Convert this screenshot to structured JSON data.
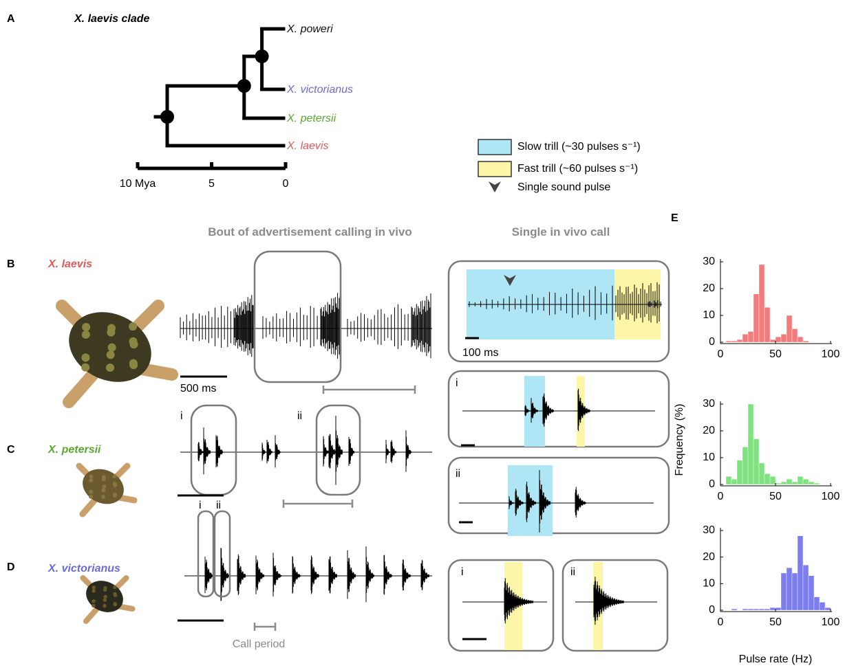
{
  "panels": {
    "a": "A",
    "b": "B",
    "c": "C",
    "d": "D",
    "e": "E"
  },
  "tree": {
    "title": "X. laevis clade",
    "xlim": [
      10,
      0
    ],
    "xticks": [
      {
        "value": 10,
        "label": "10 Mya"
      },
      5,
      0
    ],
    "node_ages": [
      8.0,
      2.8,
      1.6
    ],
    "tips": [
      {
        "label": "X. poweri",
        "color": "#111111"
      },
      {
        "label": "X. victorianus",
        "color": "#6b6bd6"
      },
      {
        "label": "X. petersii",
        "color": "#5aa832"
      },
      {
        "label": "X. laevis",
        "color": "#e05a5a"
      }
    ]
  },
  "legend": {
    "items": [
      {
        "label": "Slow trill (~30 pulses s⁻¹)",
        "color": "#aee6f5"
      },
      {
        "label": "Fast trill (~60 pulses s⁻¹)",
        "color": "#fcf6a6"
      },
      {
        "label": "Single sound pulse",
        "color": "#444444"
      }
    ]
  },
  "headers": {
    "bout": "Bout of advertisement calling in vivo",
    "single": "Single in vivo call"
  },
  "species": [
    {
      "name": "X. laevis",
      "color": "#e05a5a"
    },
    {
      "name": "X. petersii",
      "color": "#5aa832"
    },
    {
      "name": "X. victorianus",
      "color": "#6b6bd6"
    }
  ],
  "scale_bars": {
    "bout": "500 ms",
    "single": "100 ms"
  },
  "sublabels": [
    "i",
    "ii"
  ],
  "call_period": "Call period",
  "histograms": {
    "type": "histogram",
    "bins": [
      0,
      5,
      10,
      15,
      20,
      25,
      30,
      35,
      40,
      45,
      50,
      55,
      60,
      65,
      70,
      75,
      80,
      85,
      90,
      95,
      100
    ],
    "xlim": [
      0,
      100
    ],
    "xticks": [
      0,
      50,
      100
    ],
    "ylim": [
      0,
      30
    ],
    "yticks": [
      0,
      10,
      20,
      30
    ],
    "ylabel": "Frequency (%)",
    "xlabel": "Pulse rate (Hz)",
    "series": [
      {
        "color": "#f47b7b",
        "values": [
          0,
          0.5,
          0.5,
          1,
          3,
          4,
          18,
          29,
          13,
          1,
          2,
          3,
          10,
          5,
          2,
          0.5,
          0,
          0,
          0,
          0
        ]
      },
      {
        "color": "#7ee37e",
        "values": [
          0,
          3,
          2,
          9,
          14,
          30,
          17,
          8,
          4,
          3,
          0.5,
          1,
          2,
          1,
          3,
          2,
          1,
          0.5,
          0,
          0
        ]
      },
      {
        "color": "#7d7df0",
        "values": [
          0,
          0,
          0.5,
          0,
          0.5,
          0.5,
          0.5,
          0.5,
          0.5,
          1,
          1,
          14,
          16,
          14,
          28,
          17,
          13,
          5,
          3,
          1
        ]
      }
    ]
  }
}
